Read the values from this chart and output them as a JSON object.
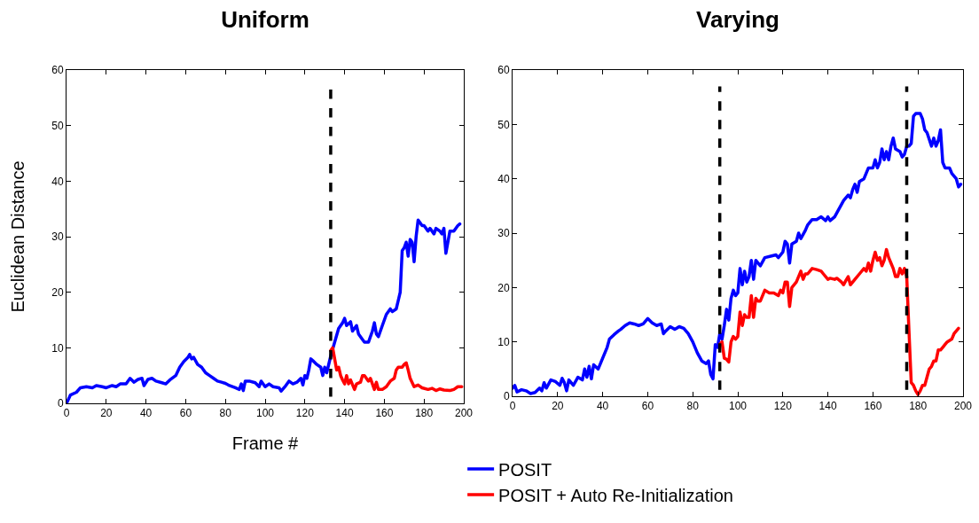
{
  "chart_data": [
    {
      "type": "line",
      "title": "Uniform",
      "xlabel": "Frame #",
      "ylabel": "Euclidean Distance",
      "xlim": [
        0,
        200
      ],
      "ylim": [
        0,
        60
      ],
      "xticks": [
        0,
        20,
        40,
        60,
        80,
        100,
        120,
        140,
        160,
        180,
        200
      ],
      "yticks": [
        0,
        10,
        20,
        30,
        40,
        50,
        60
      ],
      "grid": false,
      "legend": false,
      "line_style": "solid",
      "ref_lines": [
        {
          "axis": "x",
          "value": 133,
          "line_style": "dashed",
          "color": "#000000"
        }
      ],
      "series": [
        {
          "color": "#0000ff",
          "x": [
            0,
            2,
            5,
            7,
            10,
            13,
            15,
            18,
            20,
            23,
            25,
            27,
            30,
            32,
            34,
            36,
            38,
            39,
            41,
            43,
            45,
            48,
            50,
            52,
            55,
            57,
            59,
            61,
            62,
            63,
            64,
            66,
            68,
            70,
            72,
            74,
            76,
            78,
            80,
            82,
            85,
            87,
            88,
            89,
            90,
            92,
            95,
            97,
            98,
            100,
            102,
            104,
            107,
            108,
            110,
            112,
            114,
            116,
            118,
            119,
            120,
            121,
            122,
            123,
            124,
            126,
            128,
            129,
            130,
            131,
            133,
            135,
            137,
            139,
            140,
            141,
            143,
            144,
            146,
            147,
            149,
            150,
            152,
            154,
            155,
            156,
            157,
            159,
            161,
            163,
            164,
            166,
            167,
            168,
            169,
            170,
            171,
            172,
            173,
            174,
            175,
            176,
            177,
            178,
            179,
            180,
            182,
            183,
            185,
            186,
            188,
            189,
            190,
            191,
            193,
            195,
            197,
            198
          ],
          "values": [
            0,
            1.5,
            2,
            2.8,
            3,
            2.8,
            3.2,
            3,
            2.8,
            3.2,
            3,
            3.5,
            3.5,
            4.5,
            3.8,
            4.3,
            4.5,
            3.2,
            4.3,
            4.5,
            4,
            3.7,
            3.5,
            4.2,
            5,
            6.5,
            7.5,
            8.2,
            8.8,
            8,
            8.3,
            7,
            6.5,
            5.5,
            5,
            4.5,
            4,
            3.8,
            3.6,
            3.2,
            2.8,
            2.5,
            3.5,
            2.3,
            4,
            4,
            3.7,
            3,
            4,
            3,
            3.5,
            3,
            2.8,
            2.2,
            3,
            4,
            3.5,
            3.8,
            4.5,
            3.3,
            5,
            4.5,
            6,
            8,
            7.7,
            7,
            6.5,
            5,
            6.5,
            5.5,
            8.5,
            11,
            13.5,
            14.5,
            15.3,
            14,
            14.7,
            13,
            14,
            12.5,
            11.5,
            11,
            11,
            13,
            14.5,
            12.5,
            12,
            14,
            16,
            17,
            16.5,
            17,
            18.5,
            20,
            27.5,
            28,
            29,
            26.5,
            29.5,
            29,
            25.5,
            30,
            33,
            32.5,
            32,
            32,
            31,
            31.5,
            30.5,
            31.5,
            31,
            30.5,
            31.5,
            27,
            31,
            31,
            32,
            32.3
          ]
        },
        {
          "color": "#ff0000",
          "x": [
            133,
            134,
            135,
            136,
            137,
            138,
            139,
            140,
            141,
            142,
            143,
            145,
            146,
            148,
            149,
            150,
            152,
            153,
            154,
            155,
            156,
            157,
            159,
            161,
            163,
            165,
            166,
            167,
            169,
            170,
            171,
            172,
            173,
            175,
            177,
            179,
            182,
            184,
            186,
            188,
            190,
            193,
            195,
            197,
            199
          ],
          "values": [
            9.5,
            10,
            8,
            6,
            6.5,
            5,
            4.2,
            3.5,
            5,
            3.5,
            4.2,
            2.5,
            3.5,
            3.8,
            5,
            5,
            4,
            4.5,
            3.5,
            2.5,
            3.8,
            2.5,
            2.5,
            3,
            4,
            4.5,
            6,
            6.5,
            6.5,
            7,
            7.3,
            6,
            4.5,
            3,
            3.3,
            2.8,
            2.5,
            2.7,
            2.3,
            2.6,
            2.4,
            2.3,
            2.5,
            3,
            3
          ]
        }
      ]
    },
    {
      "type": "line",
      "title": "Varying",
      "xlim": [
        0,
        200
      ],
      "ylim": [
        0,
        60
      ],
      "xticks": [
        0,
        20,
        40,
        60,
        80,
        100,
        120,
        140,
        160,
        180,
        200
      ],
      "yticks": [
        0,
        10,
        20,
        30,
        40,
        50,
        60
      ],
      "grid": false,
      "legend": "bottom",
      "line_style": "solid",
      "ref_lines": [
        {
          "axis": "x",
          "value": 92,
          "line_style": "dashed",
          "color": "#000000"
        },
        {
          "axis": "x",
          "value": 175,
          "line_style": "dashed",
          "color": "#000000"
        }
      ],
      "series": [
        {
          "name": "POSIT",
          "color": "#0000ff",
          "x": [
            0,
            1,
            2,
            4,
            6,
            8,
            10,
            12,
            13,
            14,
            15,
            17,
            19,
            21,
            22,
            23,
            24,
            25,
            27,
            29,
            31,
            32,
            33,
            34,
            35,
            36,
            38,
            40,
            42,
            43,
            45,
            47,
            48,
            50,
            52,
            54,
            56,
            58,
            60,
            62,
            64,
            66,
            67,
            68,
            70,
            72,
            74,
            76,
            78,
            80,
            82,
            84,
            86,
            87,
            88,
            89,
            90,
            91,
            92,
            93,
            94,
            95,
            96,
            97,
            98,
            99,
            100,
            101,
            102,
            103,
            104,
            105,
            106,
            107,
            108,
            110,
            112,
            115,
            117,
            118,
            120,
            121,
            122,
            123,
            124,
            126,
            127,
            128,
            130,
            131,
            133,
            135,
            137,
            139,
            140,
            141,
            143,
            145,
            147,
            149,
            150,
            151,
            152,
            153,
            154,
            156,
            158,
            160,
            161,
            162,
            163,
            164,
            165,
            166,
            167,
            168,
            169,
            170,
            172,
            173,
            174,
            175,
            176,
            177,
            178,
            179,
            180,
            181,
            182,
            183,
            184,
            186,
            187,
            188,
            189,
            190,
            191,
            192,
            194,
            195,
            196,
            197,
            198,
            199
          ],
          "values": [
            1.5,
            2,
            0.8,
            1.2,
            1,
            0.5,
            0.7,
            1.5,
            1,
            2.5,
            1.5,
            3,
            2.7,
            2,
            3.3,
            2.5,
            1,
            3,
            2,
            3.5,
            3,
            5,
            3.5,
            5.5,
            3.2,
            5.8,
            5,
            7,
            9,
            10.5,
            11.3,
            12,
            12.3,
            13,
            13.5,
            13.3,
            13,
            13.3,
            14.3,
            13.5,
            13,
            13.3,
            11.5,
            12,
            12.8,
            12.3,
            12.8,
            12.5,
            11.5,
            10,
            8,
            6.5,
            6,
            6.5,
            4,
            3.2,
            9.5,
            9,
            11.5,
            10.5,
            13,
            16,
            14,
            18,
            19.5,
            18.5,
            19,
            23.5,
            20.5,
            23,
            21,
            22,
            25,
            21.5,
            25,
            24,
            25.5,
            25.8,
            26,
            25.5,
            26.5,
            28.5,
            28,
            24.5,
            28,
            28.5,
            30,
            29,
            30.5,
            31.5,
            32.5,
            32.5,
            33,
            32.3,
            33,
            32.3,
            33,
            34.5,
            36,
            37,
            36.5,
            38,
            39,
            37.5,
            39.5,
            40,
            42,
            42,
            43.5,
            42,
            43,
            45.5,
            43.5,
            45,
            43.5,
            46,
            47.5,
            45.5,
            45,
            44,
            44.5,
            46,
            46,
            46.5,
            51.5,
            52,
            52,
            52,
            51,
            49,
            48.5,
            46,
            47.5,
            46,
            47,
            49,
            43,
            42,
            42,
            41,
            40.5,
            40,
            38.5,
            39
          ]
        },
        {
          "name": "POSIT + Auto Re-Initialization",
          "color": "#ff0000",
          "x": [
            92,
            93,
            94,
            95,
            96,
            97,
            98,
            99,
            100,
            101,
            102,
            103,
            104,
            105,
            106,
            107,
            108,
            109,
            110,
            112,
            114,
            116,
            118,
            119,
            120,
            121,
            122,
            123,
            124,
            126,
            128,
            129,
            130,
            131,
            133,
            135,
            137,
            138,
            140,
            141,
            143,
            144,
            146,
            147,
            148,
            149,
            150,
            152,
            154,
            156,
            157,
            158,
            159,
            160,
            161,
            162,
            163,
            164,
            165,
            166,
            167,
            168,
            169,
            170,
            171,
            172,
            173,
            174,
            175,
            176,
            177,
            178,
            179,
            180,
            181,
            182,
            183,
            184,
            185,
            186,
            187,
            188,
            189,
            190,
            191,
            192,
            193,
            195,
            196,
            197,
            198
          ],
          "values": [
            9.5,
            10,
            7,
            6.8,
            6.3,
            10,
            11,
            10.5,
            11,
            15.5,
            13,
            15,
            14.5,
            14.5,
            18.5,
            14.5,
            18,
            17.5,
            17.5,
            19.5,
            19,
            19,
            18.5,
            19.5,
            19,
            21,
            21,
            16.5,
            20,
            21,
            23,
            21.5,
            22.5,
            22.5,
            23.5,
            23.3,
            23,
            22.5,
            21.5,
            21.7,
            21.5,
            21.7,
            21,
            20.5,
            21.3,
            22,
            20.5,
            21.5,
            22.5,
            23.5,
            23,
            24.5,
            23,
            25,
            26.5,
            25,
            25.5,
            24,
            25,
            27,
            25.5,
            24.5,
            23.5,
            22,
            22,
            23.5,
            22.5,
            23.5,
            22,
            12,
            2.5,
            2,
            1,
            0.3,
            1,
            2,
            2,
            3.5,
            5,
            5.5,
            6.5,
            6.5,
            8.5,
            8.5,
            9,
            9.5,
            10,
            10.5,
            11.5,
            12,
            12.5
          ]
        }
      ]
    }
  ]
}
